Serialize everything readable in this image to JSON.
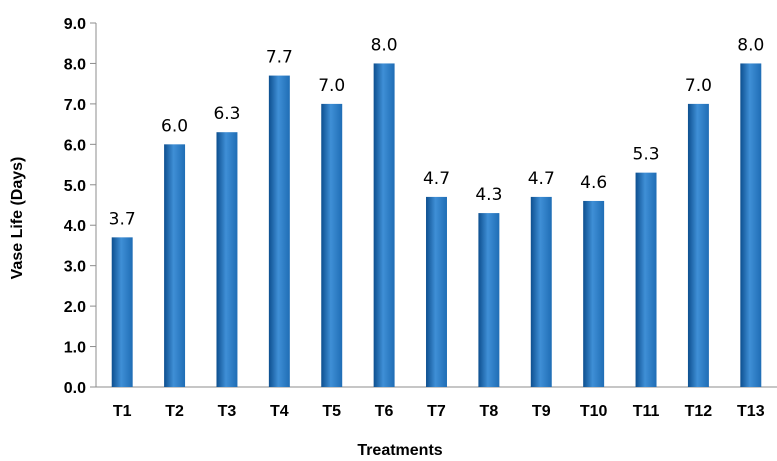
{
  "chart_data": {
    "type": "bar",
    "categories": [
      "T1",
      "T2",
      "T3",
      "T4",
      "T5",
      "T6",
      "T7",
      "T8",
      "T9",
      "T10",
      "T11",
      "T12",
      "T13"
    ],
    "values": [
      3.7,
      6.0,
      6.3,
      7.7,
      7.0,
      8.0,
      4.7,
      4.3,
      4.7,
      4.6,
      5.3,
      7.0,
      8.0
    ],
    "data_labels": [
      "3.7",
      "6.0",
      "6.3",
      "7.7",
      "7.0",
      "8.0",
      "4.7",
      "4.3",
      "4.7",
      "4.6",
      "5.3",
      "7.0",
      "8.0"
    ],
    "y_ticks": [
      "0.0",
      "1.0",
      "2.0",
      "3.0",
      "4.0",
      "5.0",
      "6.0",
      "7.0",
      "8.0",
      "9.0"
    ],
    "title": "",
    "xlabel": "Treatments",
    "ylabel": "Vase Life (Days)",
    "ylim": [
      0,
      9
    ],
    "grid": false,
    "legend": "none",
    "bar_color": "#1f6db5",
    "bar_color_light": "#3f8fd6",
    "bar_color_dark": "#0d4f8f"
  }
}
